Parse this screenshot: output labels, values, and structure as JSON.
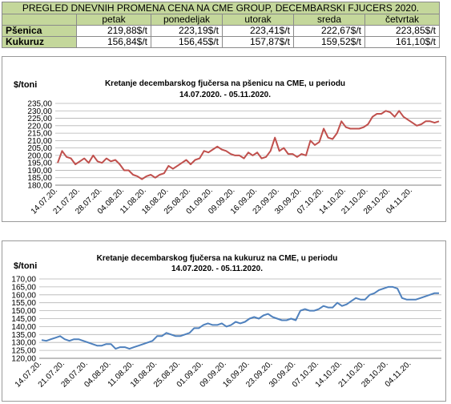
{
  "table": {
    "title": "PREGLED DNEVNIH PROMENA CENA NA CME GROUP, DECEMBARSKI  FJUCERS 2020.",
    "days": [
      "petak",
      "ponedeljak",
      "utorak",
      "sreda",
      "četvrtak"
    ],
    "rows": [
      {
        "label": "Pšenica",
        "values": [
          "219,88$/t",
          "223,19$/t",
          "223,41$/t",
          "222,67$/t",
          "223,85$/t"
        ]
      },
      {
        "label": "Kukuruz",
        "values": [
          "156,84$/t",
          "156,45$/t",
          "157,87$/t",
          "159,52$/t",
          "161,10$/t"
        ]
      }
    ]
  },
  "chart_data": [
    {
      "type": "line",
      "title": "Kretanje decembarskog fjučersa na  pšenicu na CME, u periodu\n14.07.2020. - 05.11.2020.",
      "ylabel": "$/toni",
      "xlabel": "",
      "ylim": [
        180,
        235
      ],
      "yticks": [
        180,
        185,
        190,
        195,
        200,
        205,
        210,
        215,
        220,
        225,
        230,
        235
      ],
      "ytick_labels": [
        "180,00",
        "185,00",
        "190,00",
        "195,00",
        "200,00",
        "205,00",
        "210,00",
        "215,00",
        "220,00",
        "225,00",
        "230,00",
        "235,00"
      ],
      "xtick_labels": [
        "14.07.20.",
        "21.07.20.",
        "28.07.20.",
        "04.08.20.",
        "11.08.20.",
        "18.08.20.",
        "25.08.20.",
        "01.09.20.",
        "09.09.20.",
        "16.09.20.",
        "23.09.20.",
        "30.09.20.",
        "07.10.20.",
        "14.10.20.",
        "21.10.20.",
        "28.10.20.",
        "04.11.20."
      ],
      "grid": true,
      "color": "#c0504d",
      "series": [
        {
          "name": "",
          "values": [
            195,
            203,
            199,
            198,
            194,
            196,
            198,
            195,
            200,
            196,
            195,
            198,
            196,
            197,
            194,
            190,
            190,
            187,
            186,
            184,
            186,
            187,
            185,
            187,
            188,
            193,
            191,
            193,
            195,
            197,
            194,
            197,
            198,
            203,
            202,
            204,
            206,
            204,
            203,
            201,
            200,
            200,
            198,
            202,
            200,
            202,
            198,
            199,
            203,
            212,
            203,
            205,
            201,
            201,
            199,
            201,
            200,
            210,
            207,
            209,
            218,
            212,
            211,
            215,
            223,
            219,
            218,
            218,
            218,
            219,
            221,
            226,
            228,
            228,
            230,
            229,
            226,
            230,
            226,
            224,
            222,
            220,
            221,
            223,
            223,
            222,
            223
          ]
        }
      ]
    },
    {
      "type": "line",
      "title": "Kretanje decembarskog fjučersa na  kukuruz na CME, u periodu\n14.07.2020. - 05.11.2020.",
      "ylabel": "$/toni",
      "xlabel": "",
      "ylim": [
        120,
        170
      ],
      "yticks": [
        120,
        125,
        130,
        135,
        140,
        145,
        150,
        155,
        160,
        165,
        170
      ],
      "ytick_labels": [
        "120,00",
        "125,00",
        "130,00",
        "135,00",
        "140,00",
        "145,00",
        "150,00",
        "155,00",
        "160,00",
        "165,00",
        "170,00"
      ],
      "xtick_labels": [
        "14.07.20.",
        "21.07.20.",
        "28.07.20.",
        "04.08.20.",
        "11.08.20.",
        "18.08.20.",
        "25.08.20.",
        "01.09.20.",
        "09.09.20.",
        "16.09.20.",
        "23.09.20.",
        "30.09.20.",
        "07.10.20.",
        "14.10.20.",
        "21.10.20.",
        "28.10.20.",
        "04.11.20."
      ],
      "grid": true,
      "color": "#4f81bd",
      "series": [
        {
          "name": "",
          "values": [
            131.5,
            131,
            132,
            133,
            134,
            132,
            131,
            132,
            132,
            131,
            130,
            129,
            128,
            128,
            129,
            129,
            126,
            127,
            127,
            126,
            127,
            128,
            129,
            130,
            131,
            134,
            134,
            136,
            135,
            134,
            134,
            135,
            136,
            139,
            139,
            141,
            142,
            141,
            141,
            142,
            140,
            141,
            143,
            142,
            143,
            145,
            146,
            145,
            147,
            148,
            146,
            145,
            144,
            144,
            145,
            144,
            150,
            151,
            150,
            150,
            151,
            153,
            152,
            152,
            155,
            153,
            154,
            156,
            158,
            157,
            157,
            160,
            161,
            163,
            164,
            165,
            165,
            164,
            158,
            157,
            157,
            157,
            158,
            159,
            160,
            161,
            161
          ]
        }
      ]
    }
  ]
}
